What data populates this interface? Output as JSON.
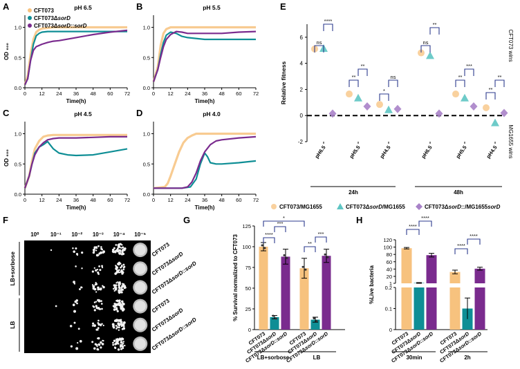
{
  "colors": {
    "cft": "#F7C27E",
    "sord": "#0E8E95",
    "comp": "#7A2B8E",
    "black": "#000000"
  },
  "panel_letters": [
    "A",
    "B",
    "C",
    "D",
    "E",
    "F",
    "G",
    "H"
  ],
  "legend_abcd": {
    "items": [
      {
        "text": "CFT073",
        "italic": "",
        "suffix": ""
      },
      {
        "text": "CFT073Δ",
        "italic": "sorD",
        "suffix": ""
      },
      {
        "text": "CFT073Δ",
        "italic": "sorD",
        "suffix": "::sorD"
      }
    ]
  },
  "chart_data": [
    {
      "panel": "A",
      "type": "line",
      "title": "pH 6.5",
      "xlabel": "Time(h)",
      "ylabel": "OD ₆₀₀",
      "xlim": [
        0,
        72
      ],
      "ylim": [
        0,
        1.2
      ],
      "xticks": [
        "0",
        "12",
        "24",
        "36",
        "48",
        "60",
        "72"
      ],
      "yticks": [
        "0.0",
        "0.5",
        "1.0"
      ],
      "series": [
        {
          "name": "CFT073",
          "x": [
            0,
            2,
            4,
            6,
            8,
            10,
            12,
            16,
            20,
            24,
            36,
            48,
            60,
            72
          ],
          "y": [
            0.05,
            0.2,
            0.55,
            0.8,
            0.92,
            0.96,
            0.98,
            0.99,
            1.0,
            1.0,
            1.0,
            1.0,
            1.0,
            1.0
          ]
        },
        {
          "name": "CFT073ΔsorD",
          "x": [
            0,
            2,
            4,
            6,
            8,
            10,
            12,
            16,
            20,
            24,
            36,
            48,
            60,
            72
          ],
          "y": [
            0.05,
            0.15,
            0.45,
            0.72,
            0.86,
            0.9,
            0.92,
            0.93,
            0.93,
            0.93,
            0.93,
            0.93,
            0.93,
            0.93
          ]
        },
        {
          "name": "CFT073ΔsorD::sorD",
          "x": [
            0,
            2,
            4,
            6,
            8,
            10,
            12,
            16,
            20,
            24,
            36,
            48,
            60,
            72
          ],
          "y": [
            0.05,
            0.15,
            0.45,
            0.62,
            0.68,
            0.7,
            0.72,
            0.75,
            0.77,
            0.78,
            0.83,
            0.88,
            0.92,
            0.95
          ]
        }
      ]
    },
    {
      "panel": "B",
      "type": "line",
      "title": "pH 5.5",
      "xlabel": "Time(h)",
      "ylabel": "",
      "xlim": [
        0,
        72
      ],
      "ylim": [
        0,
        1.2
      ],
      "xticks": [
        "0",
        "12",
        "24",
        "36",
        "48",
        "60",
        "72"
      ],
      "yticks": [
        "0.0",
        "0.5",
        "1.0"
      ],
      "series": [
        {
          "name": "CFT073",
          "x": [
            0,
            3,
            5,
            7,
            9,
            12,
            16,
            20,
            24,
            36,
            48,
            60,
            72
          ],
          "y": [
            0.1,
            0.35,
            0.7,
            0.9,
            0.97,
            1.0,
            1.0,
            1.0,
            1.0,
            1.0,
            1.0,
            1.0,
            1.0
          ]
        },
        {
          "name": "CFT073ΔsorD",
          "x": [
            0,
            3,
            5,
            7,
            9,
            12,
            16,
            20,
            24,
            36,
            48,
            60,
            72
          ],
          "y": [
            0.1,
            0.3,
            0.55,
            0.75,
            0.87,
            0.92,
            0.9,
            0.85,
            0.83,
            0.8,
            0.8,
            0.8,
            0.8
          ]
        },
        {
          "name": "CFT073ΔsorD::sorD",
          "x": [
            0,
            3,
            5,
            7,
            9,
            12,
            16,
            20,
            24,
            36,
            48,
            60,
            72
          ],
          "y": [
            0.1,
            0.3,
            0.5,
            0.68,
            0.8,
            0.88,
            0.93,
            0.92,
            0.9,
            0.9,
            0.9,
            0.92,
            0.93
          ]
        }
      ]
    },
    {
      "panel": "C",
      "type": "line",
      "title": "pH 4.5",
      "xlabel": "Time(h)",
      "ylabel": "OD ₆₀₀",
      "xlim": [
        0,
        72
      ],
      "ylim": [
        0,
        1.2
      ],
      "xticks": [
        "0",
        "12",
        "24",
        "36",
        "48",
        "60",
        "72"
      ],
      "yticks": [
        "0.0",
        "0.5",
        "1.0"
      ],
      "series": [
        {
          "name": "CFT073",
          "x": [
            0,
            3,
            5,
            7,
            10,
            13,
            16,
            20,
            24,
            36,
            48,
            60,
            72
          ],
          "y": [
            0.1,
            0.3,
            0.55,
            0.75,
            0.88,
            0.95,
            0.97,
            0.98,
            0.98,
            0.98,
            0.98,
            0.98,
            0.98
          ]
        },
        {
          "name": "CFT073ΔsorD",
          "x": [
            0,
            3,
            5,
            7,
            10,
            13,
            16,
            20,
            24,
            30,
            36,
            48,
            60,
            72
          ],
          "y": [
            0.1,
            0.3,
            0.5,
            0.68,
            0.78,
            0.82,
            0.87,
            0.75,
            0.68,
            0.65,
            0.64,
            0.65,
            0.7,
            0.75
          ]
        },
        {
          "name": "CFT073ΔsorD::sorD",
          "x": [
            0,
            3,
            5,
            7,
            10,
            13,
            16,
            20,
            24,
            36,
            48,
            60,
            72
          ],
          "y": [
            0.1,
            0.3,
            0.5,
            0.65,
            0.78,
            0.85,
            0.9,
            0.92,
            0.93,
            0.93,
            0.94,
            0.95,
            0.95
          ]
        }
      ]
    },
    {
      "panel": "D",
      "type": "line",
      "title": "pH 4.0",
      "xlabel": "Time(h)",
      "ylabel": "",
      "xlim": [
        0,
        72
      ],
      "ylim": [
        0,
        1.2
      ],
      "xticks": [
        "0",
        "12",
        "24",
        "36",
        "48",
        "60",
        "72"
      ],
      "yticks": [
        "0.0",
        "0.5",
        "1.0"
      ],
      "series": [
        {
          "name": "CFT073",
          "x": [
            0,
            8,
            10,
            12,
            15,
            18,
            21,
            24,
            27,
            30,
            36,
            48,
            60,
            72
          ],
          "y": [
            0.1,
            0.12,
            0.18,
            0.3,
            0.5,
            0.7,
            0.85,
            0.93,
            0.97,
            1.0,
            1.0,
            1.0,
            1.0,
            1.0
          ]
        },
        {
          "name": "CFT073ΔsorD",
          "x": [
            0,
            10,
            20,
            26,
            30,
            33,
            36,
            38,
            40,
            44,
            48,
            60,
            72
          ],
          "y": [
            0.1,
            0.1,
            0.1,
            0.12,
            0.25,
            0.5,
            0.68,
            0.62,
            0.52,
            0.5,
            0.5,
            0.52,
            0.55
          ]
        },
        {
          "name": "CFT073ΔsorD::sorD",
          "x": [
            0,
            10,
            20,
            24,
            27,
            30,
            33,
            36,
            40,
            44,
            48,
            60,
            72
          ],
          "y": [
            0.1,
            0.1,
            0.1,
            0.12,
            0.2,
            0.35,
            0.55,
            0.7,
            0.82,
            0.88,
            0.9,
            0.93,
            0.95
          ]
        }
      ]
    },
    {
      "panel": "E",
      "type": "scatter",
      "ylabel": "Relative fitness",
      "ylim": [
        -2,
        7
      ],
      "yticks": [
        "-2",
        "0",
        "2",
        "4",
        "6"
      ],
      "categories": [
        "pH6.5",
        "pH5.5",
        "pH4.5",
        "pH6.5",
        "pH5.5",
        "pH4.5"
      ],
      "groups": [
        "24h",
        "48h"
      ],
      "right_labels": [
        "CFT073 wins",
        "MG1655 wins"
      ],
      "series": [
        {
          "name": "CFT073/MG1655",
          "values": [
            5.1,
            1.65,
            0.85,
            4.8,
            1.65,
            0.6
          ]
        },
        {
          "name": "CFT073ΔsorD/MG1655",
          "values": [
            5.15,
            1.35,
            0.45,
            4.6,
            1.35,
            -0.55
          ]
        },
        {
          "name": "CFT073ΔsorD::sorD/MG1655",
          "values": [
            0.15,
            0.7,
            0.5,
            0.15,
            0.7,
            0.2
          ]
        }
      ],
      "significance": [
        "ns",
        "****",
        "**",
        "**",
        "*",
        "ns",
        "ns",
        "**",
        "**",
        "***",
        "**",
        "**"
      ],
      "legend": [
        "CFT073/MG1655",
        "CFT073ΔsorD/MG1655",
        "CFT073ΔsorD::sorD/MG1655"
      ]
    },
    {
      "panel": "G",
      "type": "bar",
      "ylabel": "% Survival normalized to CFT073",
      "ylim": [
        0,
        125
      ],
      "yticks": [
        "0",
        "25",
        "50",
        "75",
        "100",
        "125"
      ],
      "categories": [
        "CFT073",
        "CFT073ΔsorD",
        "CFT073ΔsorD::sorD",
        "CFT073",
        "CFT073ΔsorD",
        "CFT073ΔsorD::sorD"
      ],
      "groups": [
        "LB+sorbose",
        "LB"
      ],
      "values": [
        100,
        15,
        88,
        74,
        12,
        89
      ],
      "errors": [
        5,
        2,
        9,
        12,
        3,
        8
      ],
      "significance": [
        "****",
        "***",
        "*",
        "**",
        "***"
      ]
    },
    {
      "panel": "H",
      "type": "bar",
      "ylabel": "%Live bacteria",
      "broken_axis": true,
      "ylim_low": [
        0,
        0.2
      ],
      "ylim_high": [
        1,
        120
      ],
      "yticks": [
        "0",
        "0.1",
        "0.2",
        "1",
        "20",
        "40",
        "60",
        "80",
        "100",
        "120"
      ],
      "categories": [
        "CFT073",
        "CFT073ΔsorD",
        "CFT073ΔsorD::sorD",
        "CFT073",
        "CFT073ΔsorD",
        "CFT073ΔsorD::sorD"
      ],
      "groups": [
        "30min",
        "2h"
      ],
      "values": [
        97,
        2,
        78,
        32,
        0.1,
        41
      ],
      "errors": [
        2,
        1,
        5,
        5,
        0.05,
        4
      ],
      "significance": [
        "****",
        "****",
        "****",
        "****"
      ]
    }
  ],
  "panel_f": {
    "dilutions": [
      "10⁰",
      "10⁻¹",
      "10⁻²",
      "10⁻³",
      "10⁻⁴",
      "10⁻⁵"
    ],
    "conditions": [
      "LB+sorbose",
      "LB"
    ],
    "strains": [
      {
        "text": "CFT073",
        "italic": "",
        "suffix": ""
      },
      {
        "text": "CFT073Δ",
        "italic": "sorD",
        "suffix": ""
      },
      {
        "text": "CFT073Δ",
        "italic": "sorD",
        "suffix": "::sorD"
      }
    ]
  }
}
